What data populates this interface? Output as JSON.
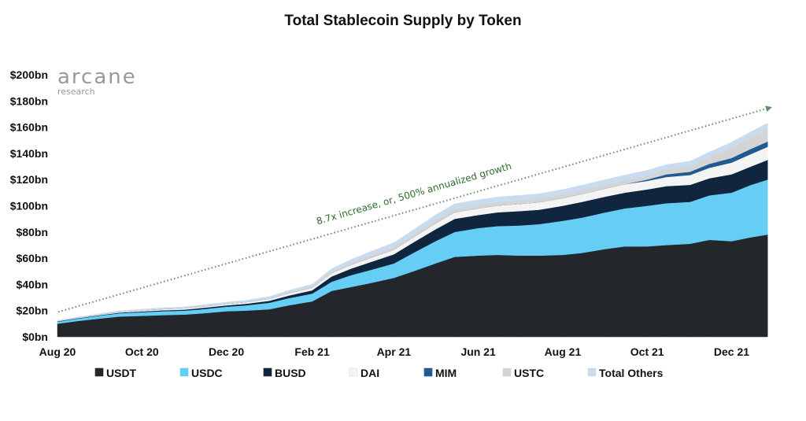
{
  "chart_data": {
    "type": "area",
    "title": "Total Stablecoin Supply by Token",
    "ylim": [
      0,
      200
    ],
    "y_ticks": [
      "$0bn",
      "$20bn",
      "$40bn",
      "$60bn",
      "$80bn",
      "$100bn",
      "$120bn",
      "$140bn",
      "$160bn",
      "$180bn",
      "$200bn"
    ],
    "x_ticks": [
      "Aug 20",
      "Oct 20",
      "Dec 20",
      "Feb 21",
      "Apr 21",
      "Jun 21",
      "Aug 21",
      "Oct 21",
      "Dec 21"
    ],
    "x": [
      "2020-08-01",
      "2020-08-15",
      "2020-09-01",
      "2020-09-15",
      "2020-10-01",
      "2020-10-15",
      "2020-11-01",
      "2020-11-15",
      "2020-12-01",
      "2020-12-15",
      "2021-01-01",
      "2021-01-15",
      "2021-02-01",
      "2021-02-15",
      "2021-03-01",
      "2021-03-15",
      "2021-04-01",
      "2021-04-15",
      "2021-05-01",
      "2021-05-15",
      "2021-06-01",
      "2021-06-15",
      "2021-07-01",
      "2021-07-15",
      "2021-08-01",
      "2021-08-15",
      "2021-09-01",
      "2021-09-15",
      "2021-10-01",
      "2021-10-15",
      "2021-11-01",
      "2021-11-15",
      "2021-12-01",
      "2021-12-15",
      "2021-12-27"
    ],
    "series": [
      {
        "name": "USDT",
        "color": "#23262b",
        "values": [
          10,
          12,
          14,
          15.5,
          16,
          16.5,
          17,
          18,
          19.5,
          20,
          21,
          24,
          27,
          35,
          38,
          41,
          45,
          50,
          56,
          61,
          62,
          62.5,
          62,
          62,
          62.5,
          64,
          67,
          69,
          69,
          70,
          71,
          74,
          73,
          76,
          78
        ]
      },
      {
        "name": "USDC",
        "color": "#66cdf5",
        "values": [
          1.5,
          1.8,
          2.2,
          2.5,
          2.8,
          3,
          3,
          3.2,
          3.5,
          4,
          5,
          5.5,
          6,
          7,
          9,
          10,
          11,
          14,
          17,
          19,
          21,
          22,
          23,
          24,
          26,
          27,
          28,
          29,
          31,
          32,
          32,
          34,
          37,
          40,
          42
        ]
      },
      {
        "name": "BUSD",
        "color": "#10263f",
        "values": [
          0.3,
          0.3,
          0.4,
          0.5,
          0.6,
          0.7,
          0.8,
          1,
          1,
          1.2,
          1.5,
          2,
          2.5,
          4,
          5,
          6,
          7,
          8,
          9,
          10,
          10,
          10.5,
          11,
          11,
          11.5,
          12,
          12,
          12,
          12.5,
          13,
          13,
          13,
          14,
          14,
          15
        ]
      },
      {
        "name": "DAI",
        "color": "#f4f4f4",
        "values": [
          0.1,
          0.2,
          0.4,
          0.5,
          0.8,
          0.9,
          1,
          1,
          1.1,
          1.2,
          1.5,
          1.8,
          2,
          2.5,
          3,
          3.2,
          3.5,
          3.8,
          4.5,
          5,
          5,
          5.2,
          5.5,
          5.7,
          5.8,
          6,
          6.2,
          6.5,
          6.5,
          7,
          7.5,
          8,
          9,
          9.5,
          10
        ]
      },
      {
        "name": "MIM",
        "color": "#1f5a93",
        "values": [
          0,
          0,
          0,
          0,
          0,
          0,
          0,
          0,
          0,
          0,
          0,
          0,
          0,
          0,
          0,
          0,
          0,
          0,
          0,
          0,
          0,
          0,
          0,
          0,
          0,
          0,
          0,
          0,
          1,
          2,
          2.5,
          3,
          3.5,
          4,
          4
        ]
      },
      {
        "name": "USTC",
        "color": "#d4d4d4",
        "values": [
          0.1,
          0.1,
          0.1,
          0.1,
          0.1,
          0.2,
          0.2,
          0.3,
          0.3,
          0.4,
          0.5,
          0.6,
          0.8,
          1.2,
          1.5,
          1.8,
          2,
          2.2,
          2.5,
          2.5,
          2.5,
          2.5,
          2.5,
          2.5,
          2.6,
          2.8,
          2.8,
          2.9,
          3,
          3.5,
          4,
          5,
          8,
          9,
          10
        ]
      },
      {
        "name": "Total Others",
        "color": "#c9dbef",
        "values": [
          0.5,
          0.5,
          0.6,
          0.7,
          0.8,
          0.8,
          0.9,
          1,
          1,
          1,
          1.2,
          1.5,
          1.8,
          2.2,
          2.5,
          3,
          3.3,
          3.6,
          4,
          4,
          4,
          4,
          4,
          4,
          4,
          4,
          4,
          4,
          4,
          4,
          4,
          4,
          4,
          4,
          4
        ]
      }
    ],
    "annotation": {
      "text": "8.7x increase, or, 500% annualized growth",
      "trend_start": 19,
      "trend_end": 175
    },
    "legend_position": "bottom",
    "grid": false
  },
  "logo": {
    "word": "arcane",
    "sub": "research"
  }
}
